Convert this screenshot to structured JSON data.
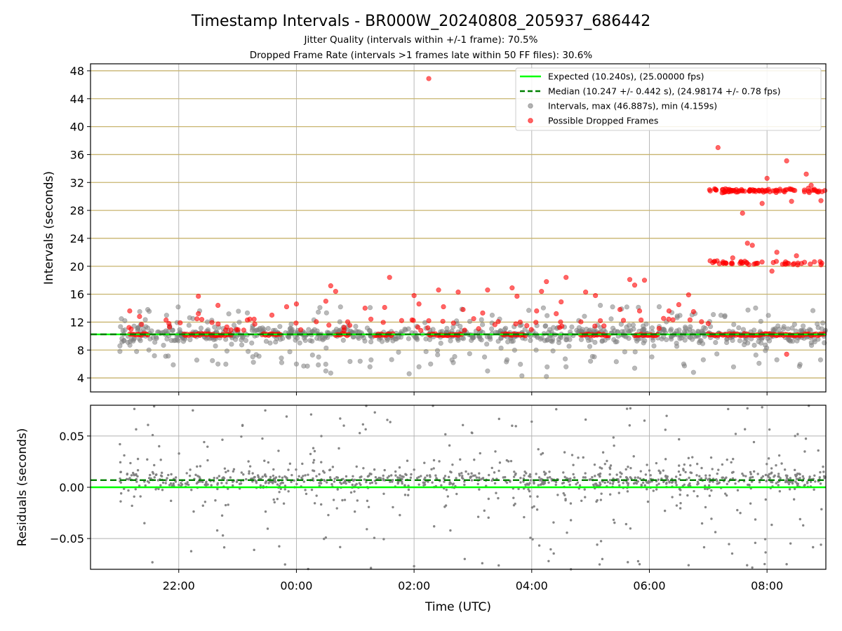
{
  "colors": {
    "expected": "#00ff00",
    "median": "#008000",
    "interval": "#808080",
    "dropped": "#ff0000",
    "hline": "#c8b46e",
    "grid": "#b0b0b0"
  },
  "chart_data": [
    {
      "type": "scatter",
      "title": "Timestamp Intervals - BR000W_20240808_205937_686442",
      "subtitle_lines": [
        "Jitter Quality (intervals within +/-1 frame): 70.5%",
        "Dropped Frame Rate (intervals >1 frames late within 50 FF files): 30.6%"
      ],
      "xlabel": "",
      "ylabel": "Intervals (seconds)",
      "x_is_time": true,
      "x_range": [
        "2024-08-08 20:30",
        "2024-08-09 09:00"
      ],
      "x_ticks": [
        "22:00",
        "00:00",
        "02:00",
        "04:00",
        "06:00",
        "08:00"
      ],
      "x_tick_labels_shown": false,
      "ylim": [
        2,
        49
      ],
      "y_ticks": [
        4,
        8,
        12,
        16,
        20,
        24,
        28,
        32,
        36,
        40,
        44,
        48
      ],
      "grid": true,
      "legend_position": "top-right",
      "lines": [
        {
          "name": "Expected (10.240s), (25.00000 fps)",
          "y": 10.24,
          "style": "solid",
          "color": "#00ff00"
        },
        {
          "name": "Median (10.247 +/- 0.442 s), (24.98174 +/- 0.78 fps)",
          "y": 10.247,
          "style": "dashed",
          "color": "#008000"
        }
      ],
      "series": [
        {
          "name": "Intervals, max (46.887s), min (4.159s)",
          "color": "#808080",
          "start": "2024-08-08 21:00",
          "end": "2024-08-09 09:00",
          "max": 46.887,
          "min": 4.159,
          "typical": 10.24,
          "typical_spread": 1.2,
          "points": [
            [
              "2024-08-08 21:00",
              7.8
            ],
            [
              "2024-08-08 21:00",
              8.6
            ],
            [
              "2024-08-08 21:05",
              12.2
            ],
            [
              "2024-08-08 22:40",
              6.0
            ],
            [
              "2024-08-08 23:45",
              6.2
            ],
            [
              "2024-08-09 00:00",
              6.0
            ],
            [
              "2024-08-09 00:30",
              5.0
            ],
            [
              "2024-08-09 00:35",
              4.7
            ],
            [
              "2024-08-09 01:05",
              6.4
            ],
            [
              "2024-08-09 01:15",
              5.6
            ],
            [
              "2024-08-09 01:55",
              4.6
            ],
            [
              "2024-08-09 02:05",
              5.6
            ],
            [
              "2024-08-09 02:40",
              6.2
            ],
            [
              "2024-08-09 03:15",
              5.0
            ],
            [
              "2024-08-09 03:50",
              4.3
            ],
            [
              "2024-08-09 04:15",
              4.2
            ],
            [
              "2024-08-09 04:35",
              5.6
            ],
            [
              "2024-08-09 05:45",
              5.4
            ],
            [
              "2024-08-09 06:35",
              6.0
            ],
            [
              "2024-08-09 06:45",
              4.8
            ],
            [
              "2024-08-09 06:55",
              6.6
            ],
            [
              "2024-08-09 05:00",
              6.4
            ],
            [
              "2024-08-09 05:10",
              14.4
            ],
            [
              "2024-08-09 06:10",
              14.2
            ]
          ]
        },
        {
          "name": "Possible Dropped Frames",
          "color": "#ff0000",
          "clusters": [
            {
              "from": "2024-08-08 21:00",
              "to": "2024-08-09 09:00",
              "y": 10.2
            },
            {
              "from": "2024-08-09 07:00",
              "to": "2024-08-09 09:00",
              "y": 20.5
            },
            {
              "from": "2024-08-09 07:00",
              "to": "2024-08-09 09:00",
              "y": 30.8
            }
          ],
          "points": [
            [
              "2024-08-08 21:10",
              13.6
            ],
            [
              "2024-08-08 21:20",
              12.8
            ],
            [
              "2024-08-08 21:50",
              11.8
            ],
            [
              "2024-08-08 22:20",
              15.7
            ],
            [
              "2024-08-08 22:20",
              13.2
            ],
            [
              "2024-08-08 22:40",
              14.4
            ],
            [
              "2024-08-08 23:10",
              12.3
            ],
            [
              "2024-08-08 23:35",
              13.0
            ],
            [
              "2024-08-08 23:50",
              14.2
            ],
            [
              "2024-08-09 00:00",
              14.6
            ],
            [
              "2024-08-09 00:30",
              15.0
            ],
            [
              "2024-08-09 00:35",
              17.2
            ],
            [
              "2024-08-09 00:40",
              16.4
            ],
            [
              "2024-08-09 01:10",
              14.0
            ],
            [
              "2024-08-09 01:30",
              14.1
            ],
            [
              "2024-08-09 01:35",
              18.4
            ],
            [
              "2024-08-09 02:00",
              15.8
            ],
            [
              "2024-08-09 02:05",
              14.6
            ],
            [
              "2024-08-09 02:15",
              12.2
            ],
            [
              "2024-08-09 02:25",
              16.6
            ],
            [
              "2024-08-09 02:30",
              14.2
            ],
            [
              "2024-08-09 02:45",
              16.3
            ],
            [
              "2024-08-09 02:50",
              13.8
            ],
            [
              "2024-08-09 03:10",
              13.3
            ],
            [
              "2024-08-09 03:15",
              16.6
            ],
            [
              "2024-08-09 03:40",
              16.9
            ],
            [
              "2024-08-09 03:45",
              15.7
            ],
            [
              "2024-08-09 03:55",
              11.5
            ],
            [
              "2024-08-09 04:05",
              13.6
            ],
            [
              "2024-08-09 04:10",
              16.4
            ],
            [
              "2024-08-09 04:15",
              17.8
            ],
            [
              "2024-08-09 04:25",
              13.2
            ],
            [
              "2024-08-09 04:30",
              14.9
            ],
            [
              "2024-08-09 04:35",
              18.4
            ],
            [
              "2024-08-09 04:55",
              16.3
            ],
            [
              "2024-08-09 05:05",
              15.8
            ],
            [
              "2024-08-09 05:10",
              12.2
            ],
            [
              "2024-08-09 05:30",
              13.8
            ],
            [
              "2024-08-09 05:40",
              18.1
            ],
            [
              "2024-08-09 05:45",
              17.3
            ],
            [
              "2024-08-09 05:50",
              13.6
            ],
            [
              "2024-08-09 05:55",
              18.0
            ],
            [
              "2024-08-09 06:20",
              13.6
            ],
            [
              "2024-08-09 06:30",
              14.5
            ],
            [
              "2024-08-09 06:40",
              15.9
            ],
            [
              "2024-08-09 06:45",
              13.5
            ],
            [
              "2024-08-09 07:00",
              11.8
            ],
            [
              "2024-08-09 07:10",
              37.0
            ],
            [
              "2024-08-09 07:15",
              31.0
            ],
            [
              "2024-08-09 07:25",
              21.2
            ],
            [
              "2024-08-09 07:35",
              27.6
            ],
            [
              "2024-08-09 07:40",
              23.3
            ],
            [
              "2024-08-09 07:45",
              23.0
            ],
            [
              "2024-08-09 07:55",
              29.0
            ],
            [
              "2024-08-09 08:00",
              32.6
            ],
            [
              "2024-08-09 08:05",
              19.3
            ],
            [
              "2024-08-09 08:10",
              22.0
            ],
            [
              "2024-08-09 08:20",
              35.1
            ],
            [
              "2024-08-09 08:25",
              29.3
            ],
            [
              "2024-08-09 08:30",
              21.5
            ],
            [
              "2024-08-09 08:40",
              33.2
            ],
            [
              "2024-08-09 08:45",
              31.6
            ],
            [
              "2024-08-09 08:55",
              29.4
            ],
            [
              "2024-08-09 08:20",
              7.4
            ],
            [
              "2024-08-09 02:15",
              46.887
            ]
          ]
        }
      ]
    },
    {
      "type": "scatter",
      "title": "",
      "xlabel": "Time (UTC)",
      "ylabel": "Residuals (seconds)",
      "x_is_time": true,
      "x_range": [
        "2024-08-08 20:30",
        "2024-08-09 09:00"
      ],
      "x_ticks": [
        "22:00",
        "00:00",
        "02:00",
        "04:00",
        "06:00",
        "08:00"
      ],
      "ylim": [
        -0.08,
        0.08
      ],
      "y_ticks": [
        0.05,
        0.0,
        -0.05
      ],
      "y_tick_labels": [
        "0.05",
        "0.00",
        "−0.05"
      ],
      "grid": true,
      "lines": [
        {
          "y": 0.0,
          "style": "solid",
          "color": "#00ff00"
        },
        {
          "y": 0.007,
          "style": "dashed",
          "color": "#008000"
        }
      ],
      "series": [
        {
          "color": "#808080",
          "start": "2024-08-08 21:00",
          "end": "2024-08-09 09:00",
          "center": 0.007,
          "spread_range": [
            -0.08,
            0.08
          ],
          "points": [
            [
              "2024-08-08 21:00",
              0.042
            ],
            [
              "2024-08-08 21:40",
              0.04
            ],
            [
              "2024-08-08 23:05",
              0.06
            ],
            [
              "2024-08-08 23:50",
              0.069
            ],
            [
              "2024-08-09 00:15",
              0.071
            ],
            [
              "2024-08-09 01:20",
              0.073
            ],
            [
              "2024-08-09 02:00",
              -0.077
            ],
            [
              "2024-08-09 03:40",
              0.06
            ],
            [
              "2024-08-09 04:00",
              0.064
            ],
            [
              "2024-08-09 04:55",
              0.066
            ],
            [
              "2024-08-09 05:55",
              0.065
            ],
            [
              "2024-08-09 07:40",
              0.077
            ],
            [
              "2024-08-09 07:55",
              0.078
            ],
            [
              "2024-08-09 08:55",
              -0.056
            ],
            [
              "2024-08-09 06:40",
              -0.076
            ],
            [
              "2024-08-09 05:50",
              -0.075
            ],
            [
              "2024-08-09 04:40",
              -0.08
            ],
            [
              "2024-08-09 08:20",
              -0.075
            ],
            [
              "2024-08-08 21:25",
              -0.035
            ],
            [
              "2024-08-08 22:45",
              -0.047
            ],
            [
              "2024-08-09 00:30",
              -0.049
            ]
          ]
        }
      ]
    }
  ]
}
